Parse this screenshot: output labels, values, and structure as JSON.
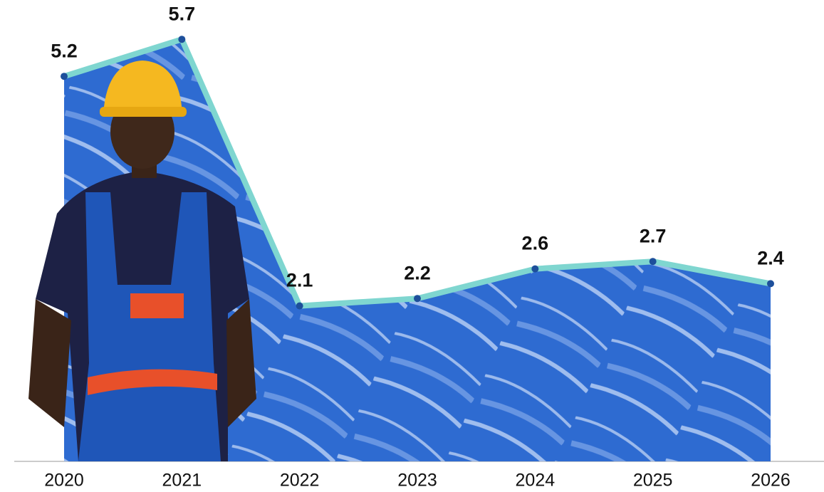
{
  "chart_data": {
    "type": "area",
    "categories": [
      "2020",
      "2021",
      "2022",
      "2023",
      "2024",
      "2025",
      "2026"
    ],
    "values": [
      5.2,
      5.7,
      2.1,
      2.2,
      2.6,
      2.7,
      2.4
    ],
    "ylim": [
      0,
      6
    ],
    "fill_color": "#2e6bd1",
    "line_color": "#7fd6d0",
    "point_color": "#1d4f9b"
  }
}
